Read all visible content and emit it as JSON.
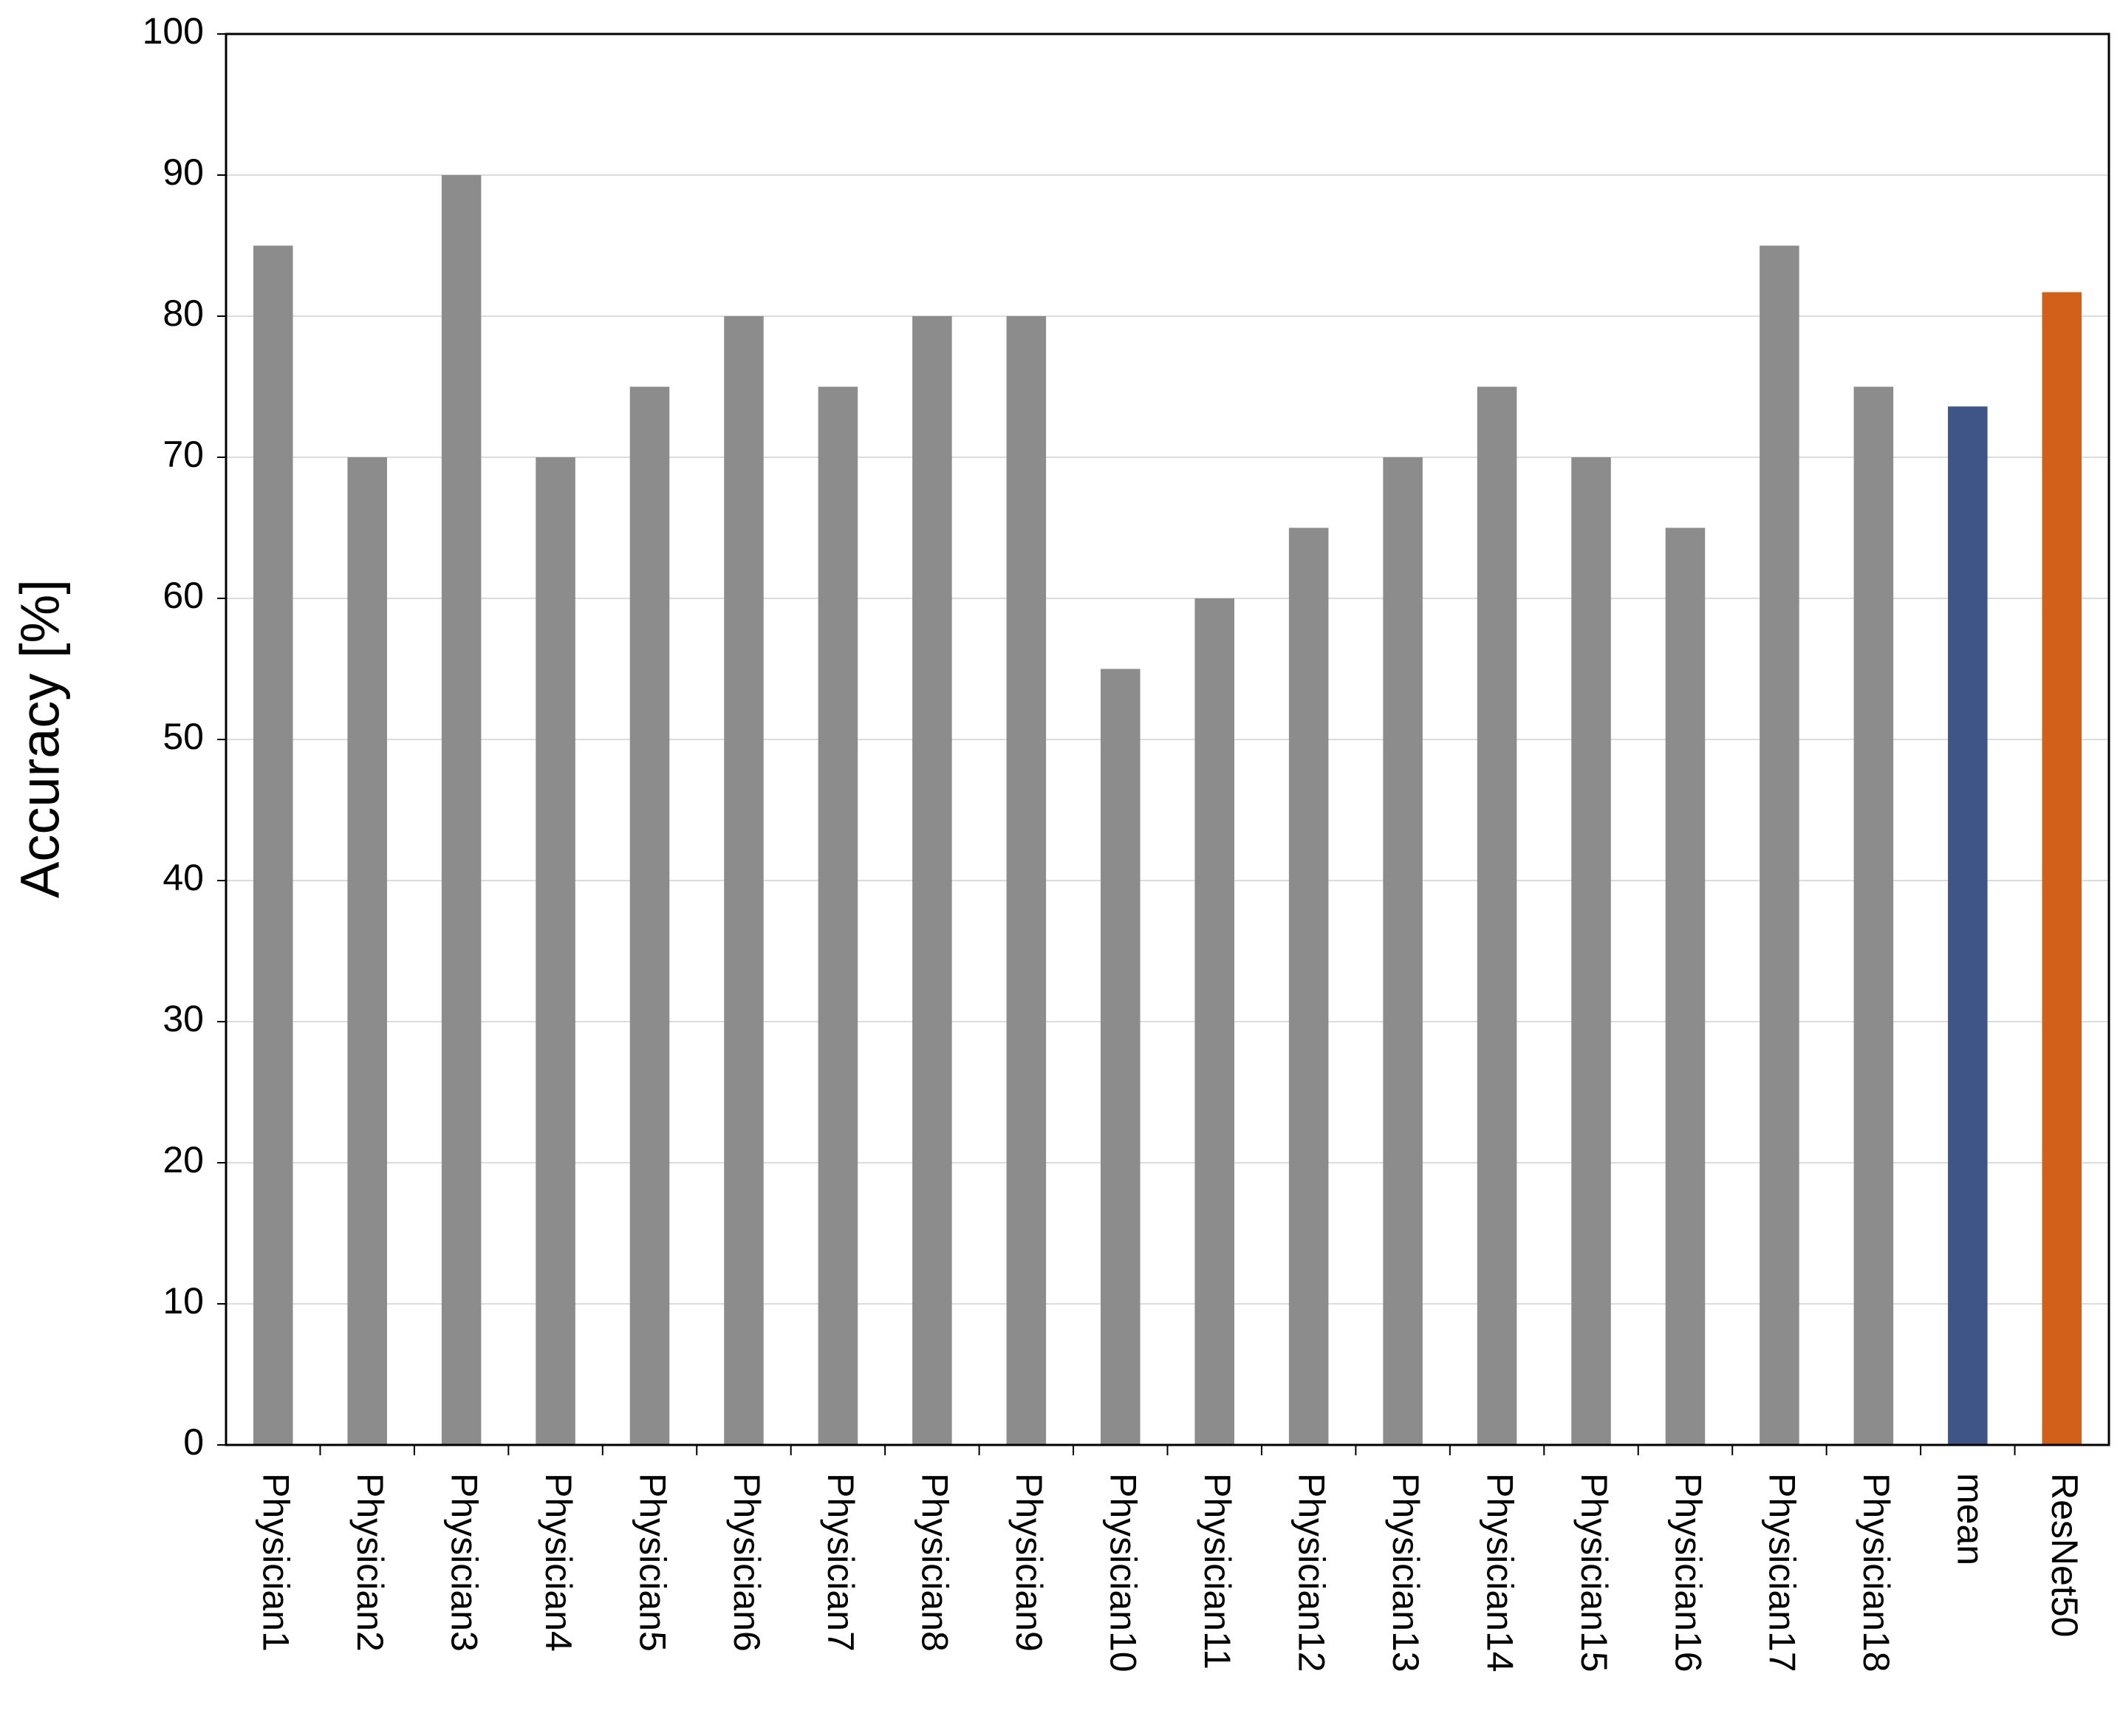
{
  "chart_data": {
    "type": "bar",
    "y_label": "Accuracy [%]",
    "categories": [
      "Physician1",
      "Physician2",
      "Physician3",
      "Physician4",
      "Physician5",
      "Physician6",
      "Physician7",
      "Physician8",
      "Physician9",
      "Physician10",
      "Physician11",
      "Physician12",
      "Physician13",
      "Physician14",
      "Physician15",
      "Physician16",
      "Physician17",
      "Physician18",
      "mean",
      "ResNet50"
    ],
    "values": [
      85,
      70,
      90,
      70,
      75,
      80,
      75,
      80,
      80,
      55,
      60,
      65,
      70,
      75,
      70,
      65,
      85,
      75,
      73.6,
      81.7
    ],
    "colors": [
      "#8c8c8c",
      "#8c8c8c",
      "#8c8c8c",
      "#8c8c8c",
      "#8c8c8c",
      "#8c8c8c",
      "#8c8c8c",
      "#8c8c8c",
      "#8c8c8c",
      "#8c8c8c",
      "#8c8c8c",
      "#8c8c8c",
      "#8c8c8c",
      "#8c8c8c",
      "#8c8c8c",
      "#8c8c8c",
      "#8c8c8c",
      "#8c8c8c",
      "#3f5588",
      "#d2601a"
    ],
    "ylim": [
      0,
      100
    ],
    "yticks": [
      0,
      10,
      20,
      30,
      40,
      50,
      60,
      70,
      80,
      90,
      100
    ],
    "grid": true
  }
}
